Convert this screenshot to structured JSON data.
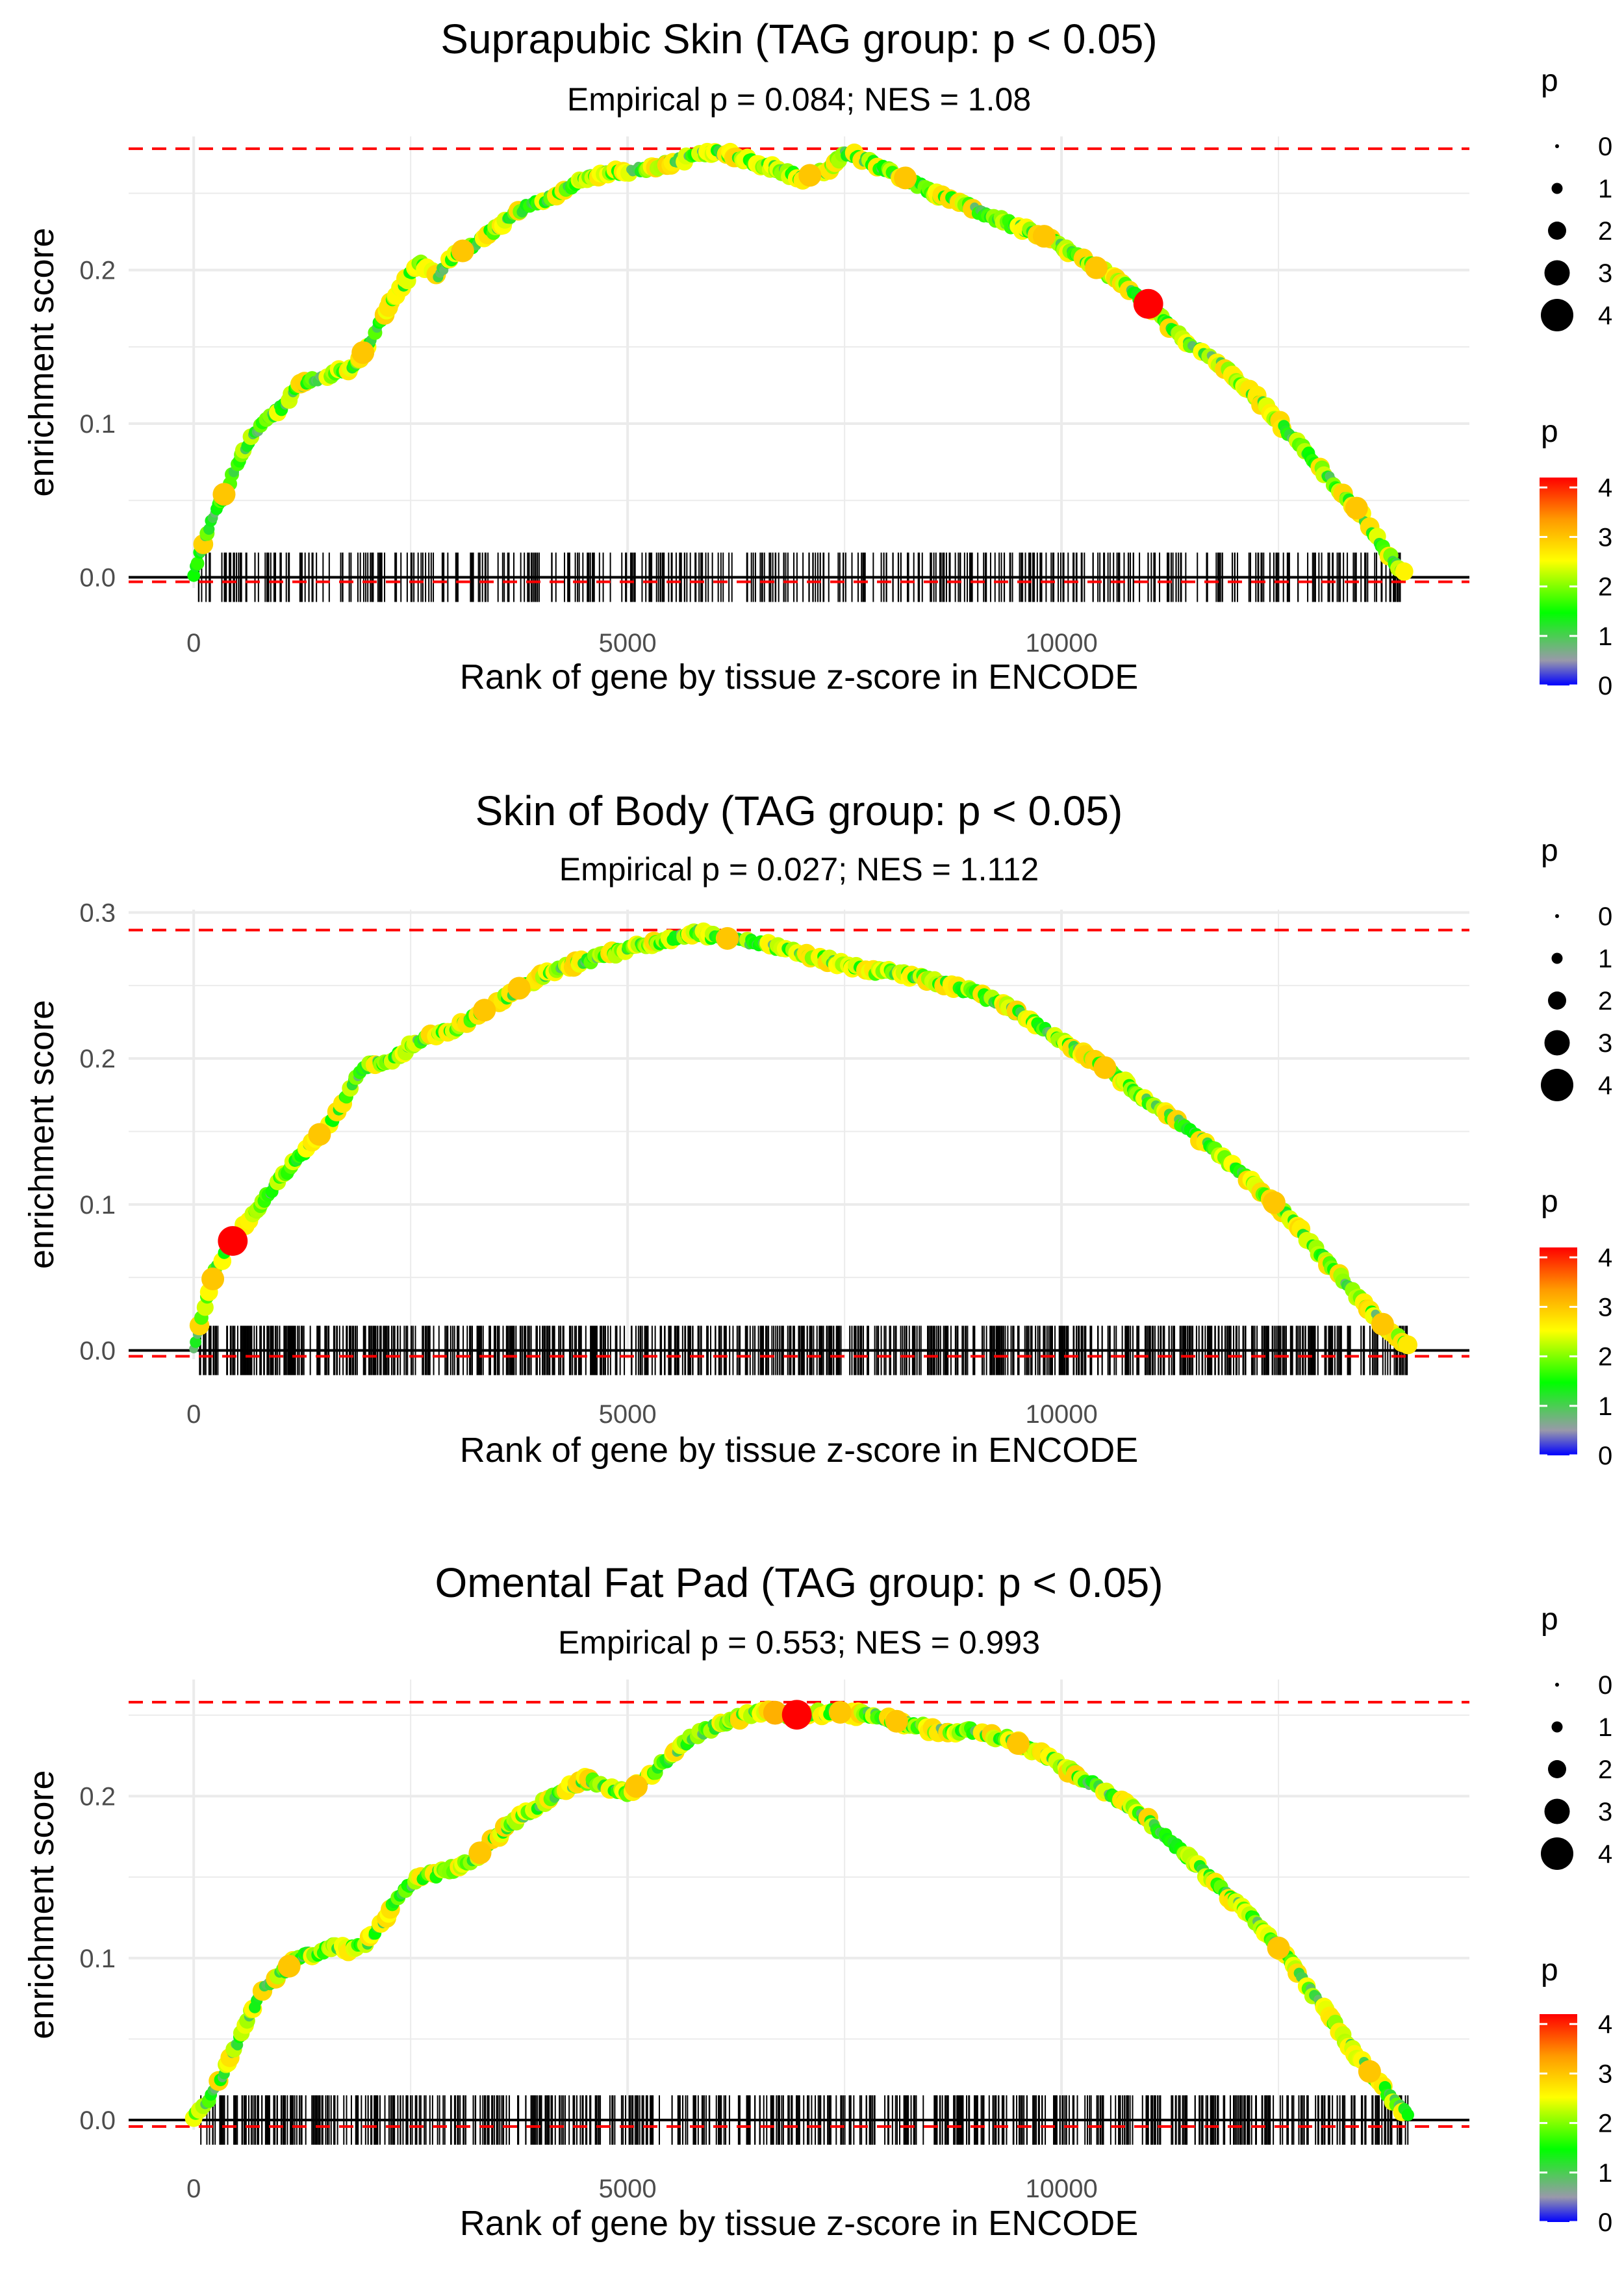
{
  "colors": {
    "threshold": "#FF0000",
    "baseline": "#000000",
    "grid": "#EBEBEB",
    "tick_text": "#4D4D4D",
    "text": "#000000",
    "gradient": [
      "#0000FF",
      "#9999AA",
      "#00FF00",
      "#FFFF00",
      "#FF9900",
      "#FF0000"
    ]
  },
  "chart_data": [
    {
      "type": "line",
      "title": "Suprapubic Skin (TAG group: p < 0.05)",
      "subtitle": "Empirical p = 0.084; NES = 1.08",
      "xlabel": "Rank of gene by tissue z-score in ENCODE",
      "ylabel": "enrichment score",
      "xlim": [
        -750,
        14700
      ],
      "ylim": [
        -0.007,
        0.287
      ],
      "x_ticks": [
        0,
        5000,
        10000
      ],
      "x_tick_labels": [
        "0",
        "5000",
        "10000"
      ],
      "y_ticks": [
        0.0,
        0.1,
        0.2
      ],
      "y_tick_labels": [
        "0.0",
        "0.1",
        "0.2"
      ],
      "threshold_lines": [
        0.279,
        -0.003
      ],
      "gene_ranks": {
        "start": 50,
        "end": 13950,
        "count": 430,
        "seed": 11
      },
      "curve": {
        "x": [
          0,
          150,
          400,
          600,
          800,
          1000,
          1200,
          1400,
          1600,
          1800,
          2000,
          2200,
          2400,
          2600,
          2800,
          3000,
          3200,
          3500,
          3800,
          4200,
          4600,
          5000,
          5400,
          5800,
          6000,
          6200,
          6600,
          7000,
          7300,
          7500,
          7800,
          8200,
          8600,
          9000,
          9400,
          9800,
          10200,
          10600,
          11000,
          11400,
          11800,
          12200,
          12600,
          13000,
          13400,
          13700,
          13950
        ],
        "y": [
          0.002,
          0.03,
          0.06,
          0.085,
          0.1,
          0.11,
          0.124,
          0.129,
          0.133,
          0.135,
          0.15,
          0.172,
          0.19,
          0.205,
          0.195,
          0.21,
          0.215,
          0.228,
          0.24,
          0.25,
          0.262,
          0.265,
          0.268,
          0.275,
          0.277,
          0.275,
          0.268,
          0.26,
          0.265,
          0.277,
          0.27,
          0.26,
          0.248,
          0.24,
          0.23,
          0.222,
          0.208,
          0.195,
          0.178,
          0.155,
          0.14,
          0.12,
          0.095,
          0.07,
          0.045,
          0.02,
          0.002
        ]
      },
      "point_p_values": [
        {
          "x": 350,
          "p": 3.0
        },
        {
          "x": 1950,
          "p": 3.0
        },
        {
          "x": 3100,
          "p": 3.0
        },
        {
          "x": 7100,
          "p": 3.0
        },
        {
          "x": 8200,
          "p": 3.0
        },
        {
          "x": 9800,
          "p": 3.0
        },
        {
          "x": 10400,
          "p": 3.0
        },
        {
          "x": 11000,
          "p": 4.2
        },
        {
          "x": 13400,
          "p": 3.0
        }
      ],
      "size_legend": {
        "title": "p",
        "labels": [
          "0",
          "1",
          "2",
          "3",
          "4"
        ]
      },
      "color_legend": {
        "title": "p",
        "labels": [
          "4",
          "3",
          "2",
          "1",
          "0"
        ],
        "range": [
          0,
          4.2
        ]
      }
    },
    {
      "type": "line",
      "title": "Skin of Body (TAG group: p < 0.05)",
      "subtitle": "Empirical p = 0.027; NES = 1.112",
      "xlabel": "Rank of gene by tissue z-score in ENCODE",
      "ylabel": "enrichment score",
      "xlim": [
        -750,
        14700
      ],
      "ylim": [
        -0.006,
        0.302
      ],
      "x_ticks": [
        0,
        5000,
        10000
      ],
      "x_tick_labels": [
        "0",
        "5000",
        "10000"
      ],
      "y_ticks": [
        0.0,
        0.1,
        0.2,
        0.3
      ],
      "y_tick_labels": [
        "0.0",
        "0.1",
        "0.2",
        "0.3"
      ],
      "threshold_lines": [
        0.288,
        -0.004
      ],
      "gene_ranks": {
        "start": 60,
        "end": 14000,
        "count": 780,
        "seed": 23
      },
      "curve": {
        "x": [
          0,
          150,
          250,
          450,
          700,
          1000,
          1300,
          1600,
          1800,
          2000,
          2300,
          2600,
          3000,
          3400,
          3800,
          4200,
          4600,
          5000,
          5400,
          5800,
          6000,
          6200,
          6600,
          7000,
          7400,
          7800,
          8200,
          8600,
          9000,
          9400,
          9800,
          10200,
          10600,
          11000,
          11400,
          11800,
          12200,
          12600,
          13000,
          13400,
          13700,
          14000
        ],
        "y": [
          0.002,
          0.035,
          0.055,
          0.075,
          0.095,
          0.118,
          0.138,
          0.158,
          0.18,
          0.195,
          0.2,
          0.213,
          0.22,
          0.235,
          0.25,
          0.262,
          0.268,
          0.275,
          0.28,
          0.287,
          0.283,
          0.282,
          0.278,
          0.272,
          0.266,
          0.26,
          0.258,
          0.252,
          0.245,
          0.235,
          0.22,
          0.205,
          0.19,
          0.17,
          0.155,
          0.135,
          0.115,
          0.093,
          0.065,
          0.038,
          0.018,
          0.002
        ]
      },
      "point_p_values": [
        {
          "x": 220,
          "p": 3.0
        },
        {
          "x": 450,
          "p": 4.2
        },
        {
          "x": 1450,
          "p": 3.0
        },
        {
          "x": 3350,
          "p": 3.0
        },
        {
          "x": 3750,
          "p": 3.0
        },
        {
          "x": 6150,
          "p": 3.0
        },
        {
          "x": 10500,
          "p": 3.0
        },
        {
          "x": 12450,
          "p": 3.0
        },
        {
          "x": 13700,
          "p": 3.0
        }
      ],
      "size_legend": {
        "title": "p",
        "labels": [
          "0",
          "1",
          "2",
          "3",
          "4"
        ]
      },
      "color_legend": {
        "title": "p",
        "labels": [
          "4",
          "3",
          "2",
          "1",
          "0"
        ],
        "range": [
          0,
          4.2
        ]
      }
    },
    {
      "type": "line",
      "title": "Omental Fat Pad (TAG group: p < 0.05)",
      "subtitle": "Empirical p = 0.553; NES = 0.993",
      "xlabel": "Rank of gene by tissue z-score in ENCODE",
      "ylabel": "enrichment score",
      "xlim": [
        -750,
        14700
      ],
      "ylim": [
        -0.006,
        0.272
      ],
      "x_ticks": [
        0,
        5000,
        10000
      ],
      "x_tick_labels": [
        "0",
        "5000",
        "10000"
      ],
      "y_ticks": [
        0.0,
        0.1,
        0.2
      ],
      "y_tick_labels": [
        "0.0",
        "0.1",
        "0.2"
      ],
      "threshold_lines": [
        0.258,
        -0.004
      ],
      "gene_ranks": {
        "start": 60,
        "end": 14000,
        "count": 650,
        "seed": 37
      },
      "curve": {
        "x": [
          0,
          200,
          400,
          600,
          800,
          1000,
          1200,
          1400,
          1600,
          1800,
          2000,
          2200,
          2400,
          2600,
          2800,
          3000,
          3200,
          3400,
          3700,
          4000,
          4300,
          4500,
          4800,
          5000,
          5200,
          5400,
          5600,
          5800,
          6000,
          6200,
          6600,
          7000,
          7400,
          7800,
          8200,
          8600,
          9000,
          9400,
          9800,
          10200,
          10600,
          11000,
          11400,
          11800,
          12200,
          12600,
          13000,
          13400,
          13700,
          14000
        ],
        "y": [
          0.002,
          0.015,
          0.035,
          0.06,
          0.08,
          0.09,
          0.1,
          0.103,
          0.107,
          0.105,
          0.11,
          0.125,
          0.14,
          0.15,
          0.152,
          0.155,
          0.16,
          0.17,
          0.185,
          0.195,
          0.205,
          0.21,
          0.205,
          0.202,
          0.21,
          0.22,
          0.23,
          0.238,
          0.243,
          0.248,
          0.252,
          0.25,
          0.252,
          0.25,
          0.245,
          0.24,
          0.24,
          0.235,
          0.225,
          0.212,
          0.2,
          0.185,
          0.165,
          0.145,
          0.125,
          0.1,
          0.07,
          0.04,
          0.02,
          0.002
        ]
      },
      "point_p_values": [
        {
          "x": 1100,
          "p": 3.0
        },
        {
          "x": 3300,
          "p": 3.0
        },
        {
          "x": 5100,
          "p": 3.0
        },
        {
          "x": 6700,
          "p": 3.2
        },
        {
          "x": 6950,
          "p": 4.2
        },
        {
          "x": 7450,
          "p": 3.0
        },
        {
          "x": 8100,
          "p": 3.0
        },
        {
          "x": 9500,
          "p": 3.0
        },
        {
          "x": 12500,
          "p": 3.0
        },
        {
          "x": 13550,
          "p": 3.0
        }
      ],
      "size_legend": {
        "title": "p",
        "labels": [
          "0",
          "1",
          "2",
          "3",
          "4"
        ]
      },
      "color_legend": {
        "title": "p",
        "labels": [
          "4",
          "3",
          "2",
          "1",
          "0"
        ],
        "range": [
          0,
          4.2
        ]
      }
    }
  ]
}
